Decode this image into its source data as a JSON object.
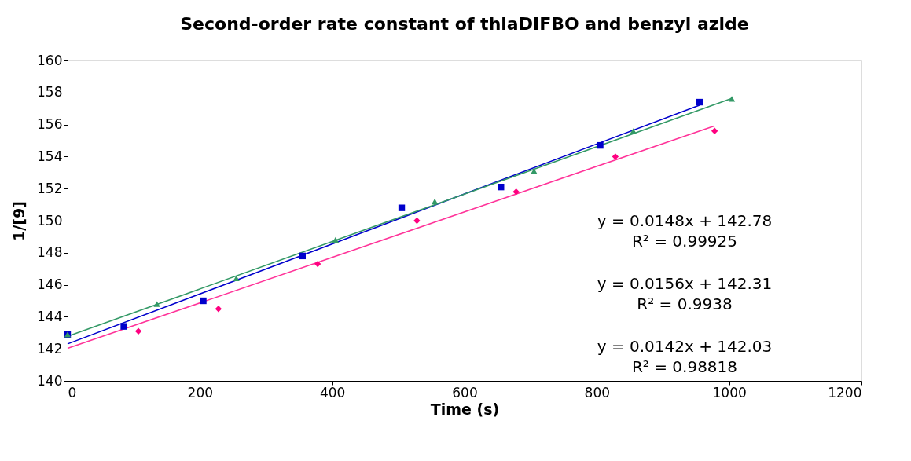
{
  "chart_data": {
    "type": "scatter",
    "title": "Second-order rate constant of thiaDIFBO and benzyl azide",
    "xlabel": "Time (s)",
    "ylabel": "1/[9]",
    "xlim": [
      0,
      1200
    ],
    "xticks": [
      0,
      200,
      400,
      600,
      800,
      1000,
      1200
    ],
    "ylim": [
      140,
      160
    ],
    "yticks": [
      140,
      142,
      144,
      146,
      148,
      150,
      152,
      154,
      156,
      158,
      160
    ],
    "grid": false,
    "series": [
      {
        "marker": "square",
        "color": "#0000cc",
        "x": [
          0,
          85,
          205,
          355,
          505,
          655,
          805,
          955
        ],
        "values": [
          142.9,
          143.4,
          145.0,
          147.8,
          150.8,
          152.1,
          154.7,
          157.4
        ]
      },
      {
        "marker": "triangle",
        "color": "#339966",
        "x": [
          0,
          135,
          255,
          405,
          555,
          705,
          855,
          1004
        ],
        "values": [
          142.9,
          144.8,
          146.4,
          148.8,
          151.2,
          153.1,
          155.6,
          157.6
        ]
      },
      {
        "marker": "diamond",
        "color": "#ff0080",
        "x": [
          107,
          228,
          378,
          528,
          678,
          828,
          978
        ],
        "values": [
          143.1,
          144.5,
          147.3,
          150.0,
          151.8,
          154.0,
          155.6
        ]
      },
      {
        "type": "line",
        "line_style": "solid",
        "color": "#0000cc",
        "x": [
          0,
          955
        ],
        "values": [
          142.31,
          157.21
        ]
      },
      {
        "type": "line",
        "line_style": "solid",
        "color": "#339966",
        "x": [
          0,
          1004
        ],
        "values": [
          142.78,
          157.64
        ]
      },
      {
        "type": "line",
        "line_style": "solid",
        "color": "#ff3399",
        "x": [
          0,
          978
        ],
        "values": [
          142.03,
          155.92
        ]
      }
    ],
    "annotations": [
      "y = 0.0148x + 142.78",
      "R² = 0.99925",
      "y = 0.0156x + 142.31",
      "R² = 0.9938",
      "y = 0.0142x + 142.03",
      "R² = 0.98818"
    ]
  }
}
